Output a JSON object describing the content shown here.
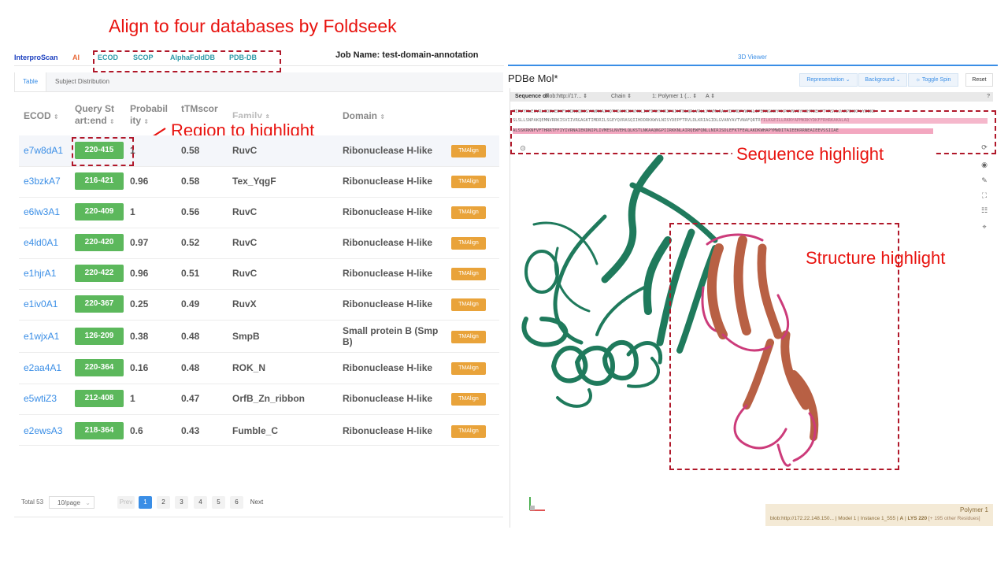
{
  "annotations": {
    "top_title": "Align to four databases by Foldseek",
    "region_label": "Region to highlight",
    "sequence_label": "Sequence highlight",
    "structure_label": "Structure highlight"
  },
  "nav": {
    "interproscan": "InterproScan",
    "ai": "AI",
    "ecod": "ECOD",
    "scop": "SCOP",
    "alphafolddb": "AlphaFoldDB",
    "pdbdb": "PDB-DB",
    "job_name": "Job Name: test-domain-annotation"
  },
  "colors": {
    "accent": "#3a8ee6",
    "badge": "#5cb85c",
    "tm": "#e9a33a",
    "annot": "#e8130f",
    "chain_a": "#1f7a5c",
    "chain_b": "#cc3b7a"
  },
  "tabs": {
    "table": "Table",
    "subject_distribution": "Subject Distribution"
  },
  "table": {
    "headers": {
      "ecod": "ECOD",
      "query_l1": "Query St",
      "query_l2": "art:end",
      "prob_l1": "Probabil",
      "prob_l2": "ity",
      "ttm_l1": "tTMscor",
      "family": "Family",
      "domain": "Domain"
    },
    "tm_label": "TMAlign",
    "rows": [
      {
        "ecod": "e7w8dA1",
        "range": "220-415",
        "prob": "1",
        "ttm": "0.58",
        "family": "RuvC",
        "domain": "Ribonuclease H-like"
      },
      {
        "ecod": "e3bzkA7",
        "range": "216-421",
        "prob": "0.96",
        "ttm": "0.58",
        "family": "Tex_YqgF",
        "domain": "Ribonuclease H-like"
      },
      {
        "ecod": "e6lw3A1",
        "range": "220-409",
        "prob": "1",
        "ttm": "0.56",
        "family": "RuvC",
        "domain": "Ribonuclease H-like"
      },
      {
        "ecod": "e4ld0A1",
        "range": "220-420",
        "prob": "0.97",
        "ttm": "0.52",
        "family": "RuvC",
        "domain": "Ribonuclease H-like"
      },
      {
        "ecod": "e1hjrA1",
        "range": "220-422",
        "prob": "0.96",
        "ttm": "0.51",
        "family": "RuvC",
        "domain": "Ribonuclease H-like"
      },
      {
        "ecod": "e1iv0A1",
        "range": "220-367",
        "prob": "0.25",
        "ttm": "0.49",
        "family": "RuvX",
        "domain": "Ribonuclease H-like"
      },
      {
        "ecod": "e1wjxA1",
        "range": "126-209",
        "prob": "0.38",
        "ttm": "0.48",
        "family": "SmpB",
        "domain": "Small protein B (Smp B)"
      },
      {
        "ecod": "e2aa4A1",
        "range": "220-364",
        "prob": "0.16",
        "ttm": "0.48",
        "family": "ROK_N",
        "domain": "Ribonuclease H-like"
      },
      {
        "ecod": "e5wtiZ3",
        "range": "212-408",
        "prob": "1",
        "ttm": "0.47",
        "family": "OrfB_Zn_ribbon",
        "domain": "Ribonuclease H-like"
      },
      {
        "ecod": "e2ewsA3",
        "range": "218-364",
        "prob": "0.6",
        "ttm": "0.43",
        "family": "Fumble_C",
        "domain": "Ribonuclease H-like"
      }
    ]
  },
  "pagination": {
    "total": "Total 53",
    "per_page": "10/page",
    "prev": "Prev",
    "pages": [
      "1",
      "2",
      "3",
      "4",
      "5",
      "6"
    ],
    "next": "Next"
  },
  "viewer": {
    "header": "3D Viewer",
    "title": "PDBe Mol*",
    "representation": "Representation",
    "background": "Background",
    "toggle_spin": "Toggle Spin",
    "reset": "Reset",
    "seq_of": "Sequence of",
    "blob": "blob:http://17...",
    "chain": "Chain",
    "polymer": "1: Polymer 1 (...",
    "chain_id": "A",
    "seq_line1": "MIRVYKLEIVRLIDEWEEVFLIDNQQEESYKWRKAIKQTMDAMKIKVHSLIVFDRHYHRIPAIHTNLQRLVRLLYRVMLRALYDRMQPVWRSLIPERNGKDYYKPKYNVIYKIHTEEHPTYRSVLVARPEKKPLYEIKD",
    "seq_line2": "SLSLLSNPAKQEMNVRRKISVIIVRGAGKTIMDRILSGEYQVRASQIIHDDRKKWVLNISYDEPFTRVLDLKRIAGIDLGVANYAVTVNAFQRTRYILKGEILLRKNYAPMKRKYDKFFRHRKAKALAQ",
    "seq_line3": "ALSSKRKNFVFTHRRTFFIYIVRNAIEKDNIPLIVMESLNVEHLQLKSTLNKAAQNGPIIRKKNLAIRQEWFQNLLNIRISDLEFKTFEALAKDKWHAPYMWDITAIEEKRRNEAIEEVSSIIAE",
    "status_polymer": "Polymer 1",
    "status_detail": "blob:http://172.22.148.150... | Model 1 | Instance 1_555 |",
    "status_chain": "A",
    "status_res": "LYS 220",
    "status_more": "[+ 195 other Residues]"
  }
}
